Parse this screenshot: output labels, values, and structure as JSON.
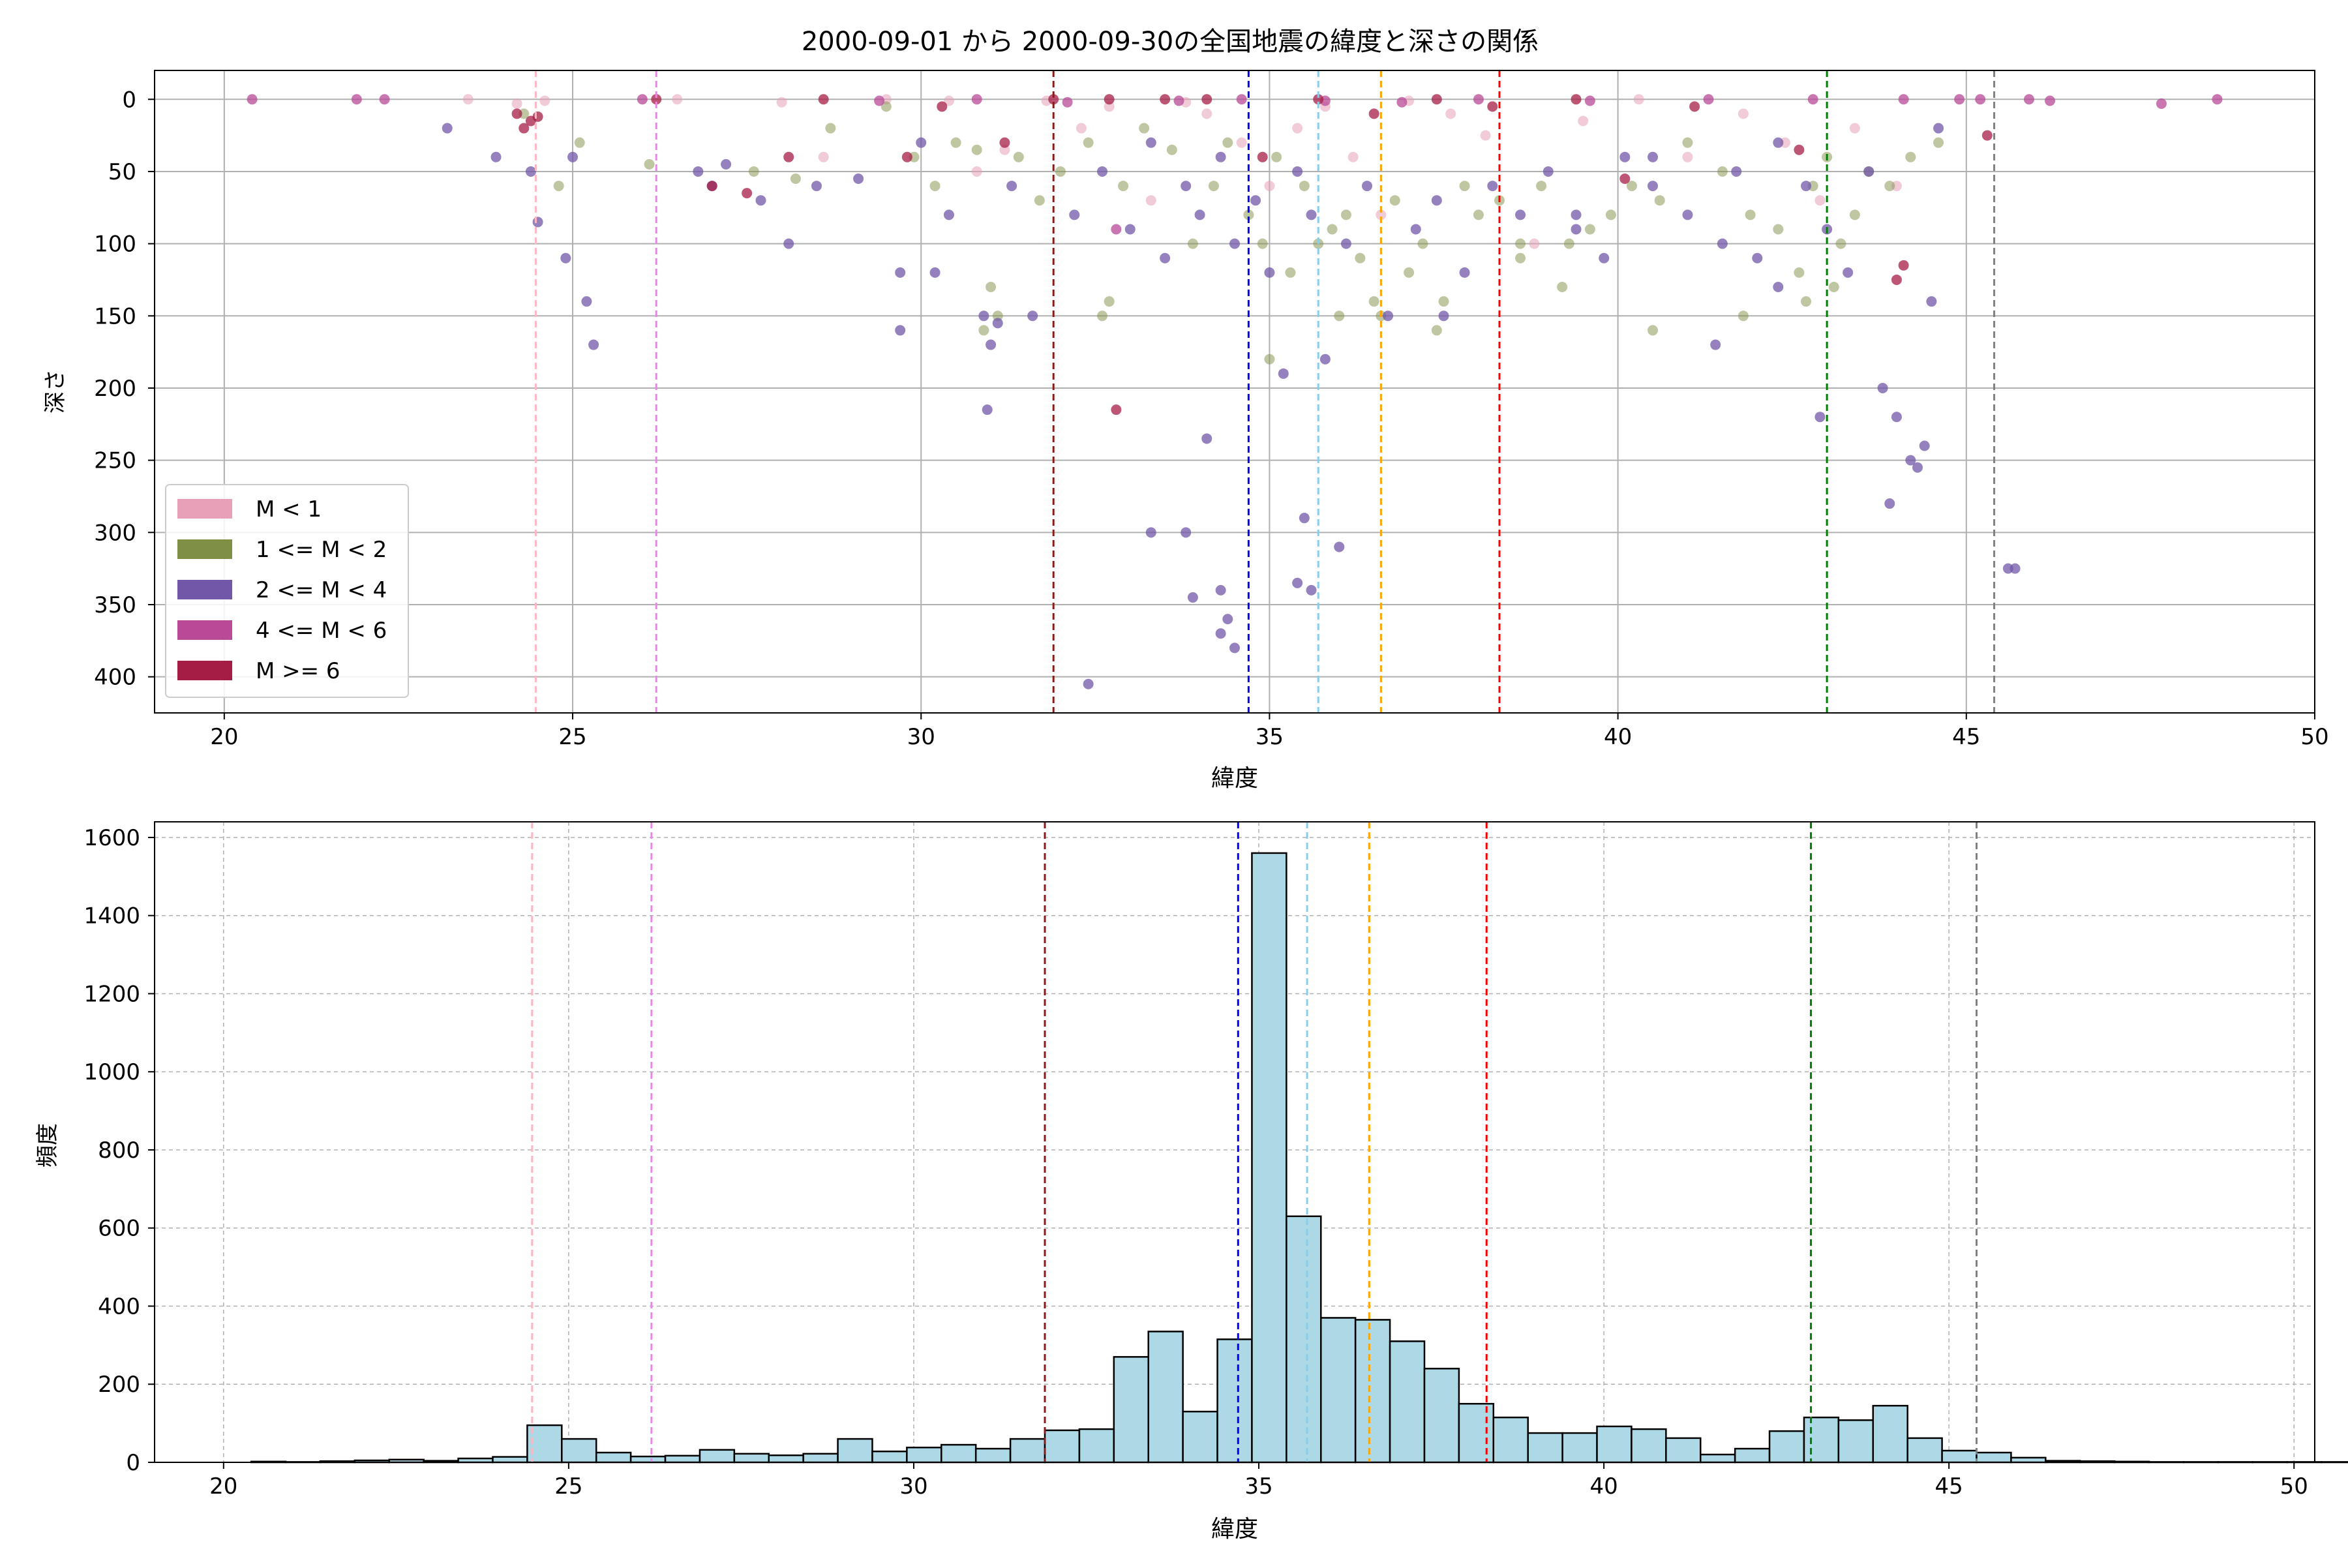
{
  "title": "2000-09-01 から 2000-09-30の全国地震の緯度と深さの関係",
  "scatter": {
    "xlabel": "緯度",
    "ylabel": "深さ",
    "xlim": [
      19,
      50
    ],
    "ylim": [
      425,
      -20
    ],
    "xticks": [
      "20",
      "25",
      "30",
      "35",
      "40",
      "45",
      "50"
    ],
    "yticks": [
      "0",
      "50",
      "100",
      "150",
      "200",
      "250",
      "300",
      "350",
      "400"
    ],
    "legend": [
      {
        "label": "M < 1",
        "color": "#e8a0b8"
      },
      {
        "label": "1 <= M < 2",
        "color": "#7f8f45"
      },
      {
        "label": "2 <= M < 4",
        "color": "#7257a8"
      },
      {
        "label": "4 <= M < 6",
        "color": "#b84a97"
      },
      {
        "label": "M >= 6",
        "color": "#a51d45"
      }
    ]
  },
  "histogram": {
    "xlabel": "緯度",
    "ylabel": "頻度",
    "xlim": [
      19,
      50.3
    ],
    "ylim": [
      0,
      1640
    ],
    "xticks": [
      "20",
      "25",
      "30",
      "35",
      "40",
      "45",
      "50"
    ],
    "yticks": [
      "0",
      "200",
      "400",
      "600",
      "800",
      "1000",
      "1200",
      "1400",
      "1600"
    ],
    "bar_color": "#add8e6"
  },
  "vlines": [
    {
      "x": 24.47,
      "color": "#ffb6c1"
    },
    {
      "x": 26.2,
      "color": "#ee82ee"
    },
    {
      "x": 31.9,
      "color": "#8b1a1a"
    },
    {
      "x": 34.7,
      "color": "#0000ff"
    },
    {
      "x": 35.7,
      "color": "#87ceeb"
    },
    {
      "x": 36.6,
      "color": "#ffa500"
    },
    {
      "x": 38.3,
      "color": "#ff0000"
    },
    {
      "x": 43.0,
      "color": "#008000"
    },
    {
      "x": 45.4,
      "color": "#808080"
    }
  ],
  "chart_data": [
    {
      "type": "scatter",
      "title": "2000-09-01 から 2000-09-30の全国地震の緯度と深さの関係",
      "xlabel": "緯度",
      "ylabel": "深さ",
      "xlim": [
        19,
        50
      ],
      "ylim": [
        425,
        -20
      ],
      "grid": true,
      "legend_position": "lower-left",
      "series": [
        {
          "name": "M < 1",
          "x": [
            23.5,
            24.2,
            24.6,
            26.5,
            28.0,
            28.6,
            29.5,
            30.4,
            30.8,
            31.2,
            31.8,
            32.3,
            32.7,
            33.3,
            33.8,
            34.1,
            34.6,
            35.0,
            35.4,
            35.8,
            36.2,
            36.6,
            37.0,
            37.6,
            38.1,
            38.8,
            39.5,
            40.3,
            41.0,
            41.8,
            42.4,
            42.9,
            43.4,
            44.0
          ],
          "y": [
            0,
            3,
            1,
            0,
            2,
            40,
            0,
            1,
            50,
            35,
            1,
            20,
            5,
            70,
            2,
            10,
            30,
            60,
            20,
            5,
            40,
            80,
            1,
            10,
            25,
            100,
            15,
            0,
            40,
            10,
            30,
            70,
            20,
            60
          ]
        },
        {
          "name": "1 <= M < 2",
          "x": [
            24.3,
            24.8,
            25.1,
            26.1,
            27.6,
            28.2,
            28.7,
            29.5,
            29.9,
            30.2,
            30.5,
            30.8,
            31.0,
            31.1,
            31.4,
            31.7,
            32.0,
            32.4,
            32.7,
            32.9,
            33.2,
            33.6,
            33.9,
            34.2,
            34.4,
            34.7,
            34.9,
            35.1,
            35.3,
            35.5,
            35.7,
            35.9,
            36.1,
            36.3,
            36.5,
            36.8,
            37.0,
            37.2,
            37.5,
            37.8,
            38.0,
            38.3,
            38.6,
            38.9,
            39.3,
            39.6,
            39.9,
            40.2,
            40.6,
            41.0,
            41.5,
            41.9,
            42.3,
            42.6,
            42.8,
            43.0,
            43.2,
            43.4,
            43.6,
            43.9,
            44.2,
            44.6,
            32.6,
            36.6,
            37.4,
            38.6,
            39.2,
            40.5,
            41.8,
            42.7,
            30.9,
            35.0,
            36.0,
            43.1
          ],
          "y": [
            10,
            60,
            30,
            45,
            50,
            55,
            20,
            5,
            40,
            60,
            30,
            35,
            130,
            150,
            40,
            70,
            50,
            30,
            140,
            60,
            20,
            35,
            100,
            60,
            30,
            80,
            100,
            40,
            120,
            60,
            100,
            90,
            80,
            110,
            140,
            70,
            120,
            100,
            140,
            60,
            80,
            70,
            100,
            60,
            100,
            90,
            80,
            60,
            70,
            30,
            50,
            80,
            90,
            120,
            60,
            40,
            100,
            80,
            50,
            60,
            40,
            30,
            150,
            150,
            160,
            110,
            130,
            160,
            150,
            140,
            160,
            180,
            150,
            130
          ]
        },
        {
          "name": "2 <= M < 4",
          "x": [
            23.2,
            23.9,
            24.4,
            24.5,
            24.9,
            25.0,
            25.2,
            25.3,
            26.8,
            27.2,
            27.7,
            28.1,
            28.5,
            29.1,
            29.7,
            30.0,
            30.4,
            30.9,
            30.95,
            31.1,
            31.3,
            31.6,
            32.2,
            32.6,
            33.0,
            33.3,
            33.5,
            33.8,
            34.0,
            34.3,
            34.5,
            34.8,
            35.0,
            35.2,
            35.4,
            35.6,
            35.8,
            36.1,
            36.4,
            36.7,
            37.1,
            37.4,
            37.8,
            38.2,
            38.6,
            39.0,
            39.4,
            39.8,
            40.1,
            40.5,
            41.0,
            41.4,
            41.7,
            42.0,
            42.3,
            42.7,
            43.0,
            43.3,
            43.6,
            43.8,
            44.0,
            44.2,
            44.4,
            44.5,
            45.6,
            45.7,
            33.3,
            33.8,
            34.1,
            34.3,
            34.4,
            34.5,
            32.4,
            35.5,
            35.4,
            35.6,
            33.9,
            34.3,
            36.0,
            44.3,
            43.9,
            42.9,
            41.5,
            39.4,
            29.7,
            31.0,
            27.0,
            30.2,
            37.5,
            40.5,
            42.3,
            44.6
          ],
          "y": [
            20,
            40,
            50,
            85,
            110,
            40,
            140,
            170,
            50,
            45,
            70,
            100,
            60,
            55,
            160,
            30,
            80,
            150,
            215,
            155,
            60,
            150,
            80,
            50,
            90,
            30,
            110,
            60,
            80,
            40,
            100,
            70,
            120,
            190,
            50,
            80,
            180,
            100,
            60,
            150,
            90,
            70,
            120,
            60,
            80,
            50,
            90,
            110,
            40,
            60,
            80,
            170,
            50,
            110,
            130,
            60,
            90,
            120,
            50,
            200,
            220,
            250,
            240,
            140,
            325,
            325,
            300,
            300,
            235,
            340,
            360,
            380,
            405,
            290,
            335,
            340,
            345,
            370,
            310,
            255,
            280,
            220,
            100,
            80,
            120,
            170,
            60,
            120,
            150,
            40,
            30,
            20
          ]
        },
        {
          "name": "4 <= M < 6",
          "x": [
            20.4,
            21.9,
            22.3,
            26.0,
            29.4,
            30.8,
            32.1,
            32.8,
            33.7,
            34.6,
            35.8,
            36.9,
            38.0,
            39.6,
            41.3,
            42.8,
            44.1,
            44.9,
            45.2,
            45.9,
            46.2,
            47.8,
            48.6
          ],
          "y": [
            0,
            0,
            0,
            0,
            1,
            0,
            2,
            90,
            1,
            0,
            1,
            2,
            0,
            1,
            0,
            0,
            0,
            0,
            0,
            0,
            1,
            3,
            0
          ]
        },
        {
          "name": "M >= 6",
          "x": [
            24.2,
            24.3,
            24.4,
            24.5,
            26.2,
            27.0,
            27.5,
            28.1,
            28.6,
            29.8,
            30.3,
            31.2,
            31.9,
            32.7,
            32.8,
            33.5,
            34.1,
            34.9,
            35.7,
            36.5,
            37.4,
            38.2,
            39.4,
            40.1,
            41.1,
            42.6,
            44.1,
            44.0,
            45.3
          ],
          "y": [
            10,
            20,
            15,
            12,
            0,
            60,
            65,
            40,
            0,
            40,
            5,
            30,
            0,
            0,
            215,
            0,
            0,
            40,
            0,
            10,
            0,
            5,
            0,
            55,
            5,
            35,
            115,
            125,
            25
          ]
        }
      ]
    },
    {
      "type": "bar",
      "title": "",
      "xlabel": "緯度",
      "ylabel": "頻度",
      "xlim": [
        19,
        50.3
      ],
      "ylim": [
        0,
        1640
      ],
      "grid": true,
      "bin_width": 0.5,
      "bin_start": 20.4,
      "values": [
        2,
        1,
        3,
        5,
        7,
        4,
        10,
        14,
        95,
        60,
        25,
        15,
        17,
        32,
        22,
        18,
        22,
        60,
        28,
        38,
        45,
        35,
        60,
        82,
        85,
        270,
        335,
        130,
        315,
        1560,
        630,
        370,
        365,
        310,
        240,
        150,
        115,
        75,
        75,
        92,
        85,
        62,
        20,
        35,
        80,
        115,
        108,
        145,
        62,
        30,
        25,
        12,
        4,
        3,
        2,
        1,
        1,
        1,
        1,
        1,
        1
      ]
    }
  ]
}
